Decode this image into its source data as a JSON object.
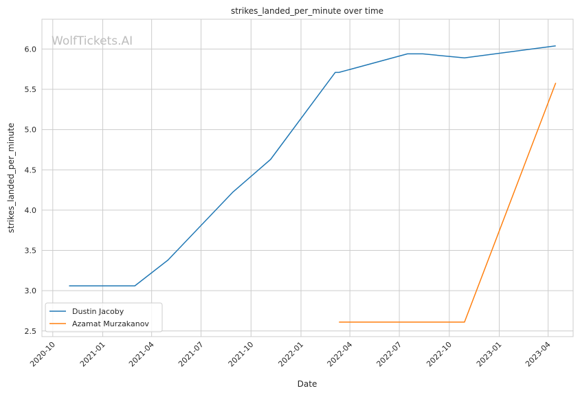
{
  "chart_data": {
    "type": "line",
    "title": "strikes_landed_per_minute over time",
    "xlabel": "Date",
    "ylabel": "strikes_landed_per_minute",
    "watermark": "WolfTickets.AI",
    "ylim": [
      2.43,
      6.37
    ],
    "xlim": [
      "2020-09-11",
      "2023-05-17"
    ],
    "yticks": [
      "2.5",
      "3.0",
      "3.5",
      "4.0",
      "4.5",
      "5.0",
      "5.5",
      "6.0"
    ],
    "xticks": [
      "2020-10",
      "2021-01",
      "2021-04",
      "2021-07",
      "2021-10",
      "2022-01",
      "2022-04",
      "2022-07",
      "2022-10",
      "2023-01",
      "2023-04"
    ],
    "grid": true,
    "legend_position": "lower-left",
    "series": [
      {
        "name": "Dustin Jacoby",
        "color": "#1f77b4",
        "points": [
          [
            "2020-10-31",
            3.06
          ],
          [
            "2021-03-01",
            3.06
          ],
          [
            "2021-05-01",
            3.38
          ],
          [
            "2021-08-28",
            4.22
          ],
          [
            "2021-11-06",
            4.63
          ],
          [
            "2022-03-05",
            5.71
          ],
          [
            "2022-03-12",
            5.71
          ],
          [
            "2022-07-16",
            5.94
          ],
          [
            "2022-08-13",
            5.94
          ],
          [
            "2022-10-29",
            5.89
          ],
          [
            "2023-04-15",
            6.04
          ]
        ]
      },
      {
        "name": "Azamat Murzakanov",
        "color": "#ff7f0e",
        "points": [
          [
            "2022-03-12",
            2.61
          ],
          [
            "2022-10-29",
            2.61
          ],
          [
            "2023-04-15",
            5.58
          ]
        ]
      }
    ]
  }
}
